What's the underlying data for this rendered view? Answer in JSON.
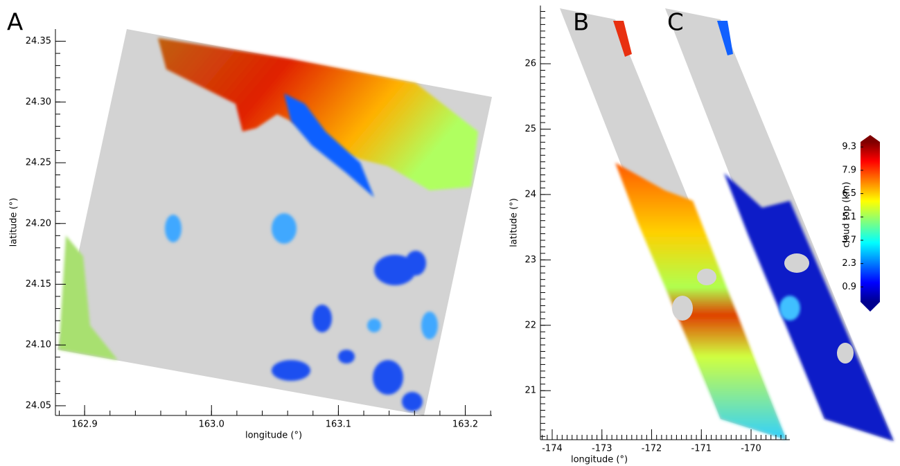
{
  "chart_data": [
    {
      "type": "map",
      "panel_label": "A",
      "xlabel": "longitude (°)",
      "ylabel": "latitude (°)",
      "xlim": [
        162.877,
        163.221
      ],
      "ylim": [
        24.042,
        24.36
      ],
      "xticks": [
        162.9,
        {
          "value": 163,
          "label": "163.0"
        },
        163.1,
        163.2
      ],
      "yticks": [
        24.05,
        {
          "value": 24.1,
          "label": "24.10"
        },
        24.15,
        {
          "value": 24.2,
          "label": "24.20"
        },
        24.25,
        {
          "value": 24.3,
          "label": "24.30"
        },
        24.35
      ]
    },
    {
      "type": "map",
      "panel_labels": [
        "B",
        "C"
      ],
      "xlabel": "longitude (°)",
      "ylabel": "latitude (°)",
      "xlim": [
        -174.237,
        -169.22
      ],
      "ylim": [
        20.25,
        26.89
      ],
      "xticks": [
        -174,
        -173,
        -172,
        -171,
        -170
      ],
      "yticks": [
        21,
        22,
        23,
        24,
        25,
        26
      ]
    },
    {
      "type": "colorbar",
      "label": "cloud top (km)",
      "lim": [
        0,
        9.6
      ],
      "ticks": [
        0.9,
        2.3,
        3.7,
        5.1,
        6.5,
        7.9,
        9.3
      ]
    }
  ]
}
